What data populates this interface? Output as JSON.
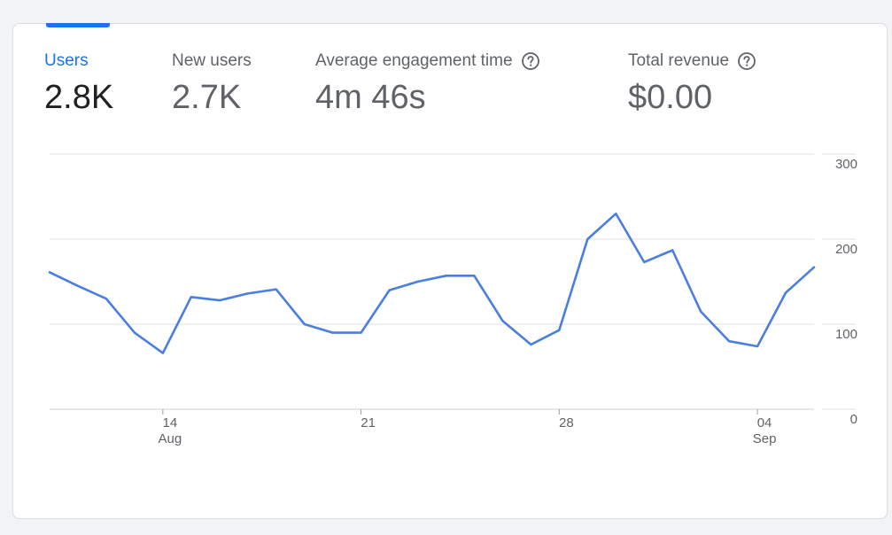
{
  "metrics": [
    {
      "label": "Users",
      "value": "2.8K",
      "active": true,
      "help": false
    },
    {
      "label": "New users",
      "value": "2.7K",
      "active": false,
      "help": false
    },
    {
      "label": "Average engagement time",
      "value": "4m 46s",
      "active": false,
      "help": true
    },
    {
      "label": "Total revenue",
      "value": "$0.00",
      "active": false,
      "help": true
    }
  ],
  "colors": {
    "accent": "#1a73e8",
    "line": "#4a7fe0",
    "grid": "#e0e0e0",
    "text_muted": "#5f6368",
    "text_strong": "#202124"
  },
  "chart_data": {
    "type": "line",
    "ylim": [
      0,
      300
    ],
    "y_ticks": [
      "0",
      "100",
      "200",
      "300"
    ],
    "y_axis_position": "right",
    "grid": true,
    "x_ticks": [
      {
        "day_index": 4,
        "label": "14",
        "sublabel": "Aug"
      },
      {
        "day_index": 11,
        "label": "21",
        "sublabel": ""
      },
      {
        "day_index": 18,
        "label": "28",
        "sublabel": ""
      },
      {
        "day_index": 25,
        "label": "04",
        "sublabel": "Sep"
      }
    ],
    "series": [
      {
        "x": [
          "Aug 10",
          "Aug 11",
          "Aug 12",
          "Aug 13",
          "Aug 14",
          "Aug 15",
          "Aug 16",
          "Aug 17",
          "Aug 18",
          "Aug 19",
          "Aug 20",
          "Aug 21",
          "Aug 22",
          "Aug 23",
          "Aug 24",
          "Aug 25",
          "Aug 26",
          "Aug 27",
          "Aug 28",
          "Aug 29",
          "Aug 30",
          "Aug 31",
          "Sep 1",
          "Sep 2",
          "Sep 3",
          "Sep 4",
          "Sep 5",
          "Sep 6"
        ],
        "values": [
          161,
          145,
          130,
          90,
          66,
          132,
          128,
          136,
          141,
          100,
          90,
          90,
          140,
          150,
          157,
          157,
          104,
          76,
          93,
          200,
          230,
          173,
          187,
          115,
          80,
          74,
          137,
          167
        ]
      }
    ]
  }
}
